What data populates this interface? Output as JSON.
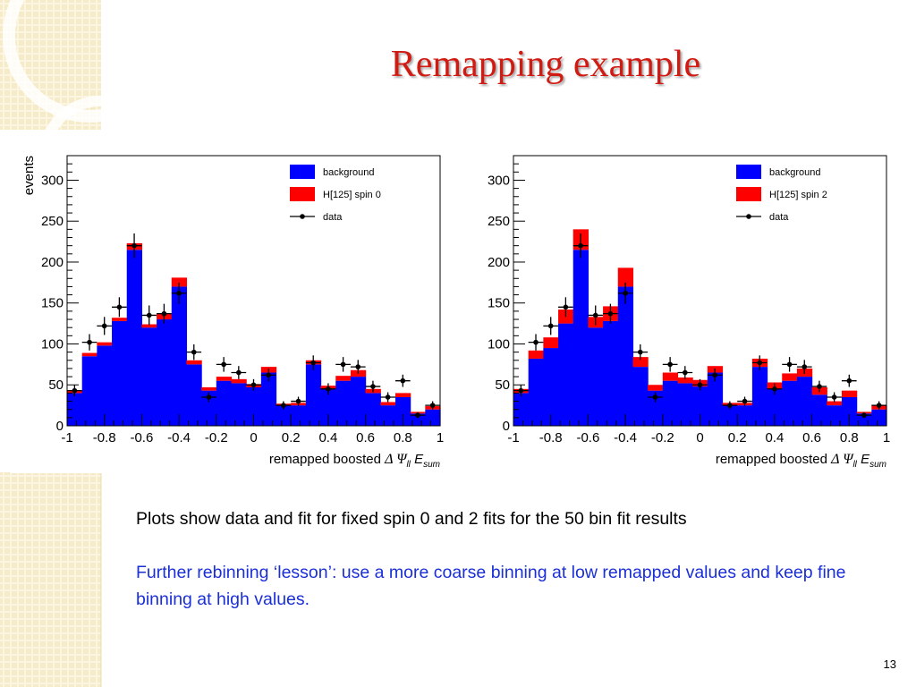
{
  "slide": {
    "title": "Remapping example",
    "caption_1": "Plots show data and fit for fixed spin 0 and 2 fits for the 50 bin fit results",
    "caption_2": "Further rebinning ‘lesson’: use a more coarse binning at low remapped values and keep fine binning at high values.",
    "page_number": "13",
    "colors": {
      "title": "#d01a12",
      "caption_2": "#1a2fd6",
      "background_fill": "#0000ff",
      "signal_fill": "#ff0000",
      "data_marker": "#000000",
      "decoration": "#f4e8c4"
    }
  },
  "chart_data": [
    {
      "type": "bar",
      "stacked": true,
      "xlabel_text": "remapped boosted",
      "xlabel_math": "Δ Ψ",
      "xlabel_sub1": "ll",
      "xlabel_var": "E",
      "xlabel_sub2": "sum",
      "ylabel": "events",
      "xlim": [
        -1,
        1
      ],
      "ylim": [
        0,
        330
      ],
      "xticks": [
        -1,
        -0.8,
        -0.6,
        -0.4,
        -0.2,
        0,
        0.2,
        0.4,
        0.6,
        0.8,
        1
      ],
      "xtick_labels": [
        "-1",
        "-0.8",
        "-0.6",
        "-0.4",
        "-0.2",
        "0",
        "0.2",
        "0.4",
        "0.6",
        "0.8",
        "1"
      ],
      "yticks": [
        0,
        50,
        100,
        150,
        200,
        250,
        300
      ],
      "ytick_labels": [
        "0",
        "50",
        "100",
        "150",
        "200",
        "250",
        "300"
      ],
      "legend_position": "top-right",
      "bin_edges": [
        -1,
        -0.92,
        -0.84,
        -0.76,
        -0.68,
        -0.6,
        -0.52,
        -0.44,
        -0.36,
        -0.28,
        -0.2,
        -0.12,
        -0.04,
        0.04,
        0.12,
        0.2,
        0.28,
        0.36,
        0.44,
        0.52,
        0.6,
        0.68,
        0.76,
        0.84,
        0.92,
        1
      ],
      "series": [
        {
          "name": "background",
          "color": "#0000ff",
          "values": [
            40,
            85,
            98,
            128,
            215,
            120,
            130,
            170,
            75,
            43,
            55,
            52,
            47,
            65,
            25,
            25,
            75,
            45,
            55,
            60,
            40,
            25,
            35,
            15,
            20
          ]
        },
        {
          "name": "H[125] spin 0",
          "color": "#ff0000",
          "values": [
            3,
            4,
            4,
            4,
            8,
            4,
            7,
            11,
            5,
            4,
            5,
            5,
            4,
            7,
            2,
            3,
            5,
            4,
            6,
            8,
            5,
            4,
            5,
            2,
            4
          ]
        },
        {
          "name": "data",
          "color": "#000000",
          "type": "points",
          "values": [
            43,
            102,
            122,
            145,
            220,
            135,
            137,
            162,
            90,
            35,
            75,
            65,
            50,
            62,
            25,
            30,
            77,
            45,
            75,
            72,
            48,
            35,
            55,
            13,
            25
          ],
          "errors": [
            7,
            10,
            11,
            12,
            15,
            12,
            12,
            13,
            9.5,
            6,
            9,
            8,
            7,
            8,
            5,
            5.5,
            9,
            7,
            9,
            8.5,
            7,
            6,
            7.5,
            3.5,
            5
          ]
        }
      ]
    },
    {
      "type": "bar",
      "stacked": true,
      "xlabel_text": "remapped boosted",
      "xlabel_math": "Δ Ψ",
      "xlabel_sub1": "ll",
      "xlabel_var": "E",
      "xlabel_sub2": "sum",
      "ylabel": "",
      "xlim": [
        -1,
        1
      ],
      "ylim": [
        0,
        330
      ],
      "xticks": [
        -1,
        -0.8,
        -0.6,
        -0.4,
        -0.2,
        0,
        0.2,
        0.4,
        0.6,
        0.8,
        1
      ],
      "xtick_labels": [
        "-1",
        "-0.8",
        "-0.6",
        "-0.4",
        "-0.2",
        "0",
        "0.2",
        "0.4",
        "0.6",
        "0.8",
        "1"
      ],
      "yticks": [
        0,
        50,
        100,
        150,
        200,
        250,
        300
      ],
      "ytick_labels": [
        "0",
        "50",
        "100",
        "150",
        "200",
        "250",
        "300"
      ],
      "legend_position": "top-right",
      "bin_edges": [
        -1,
        -0.92,
        -0.84,
        -0.76,
        -0.68,
        -0.6,
        -0.52,
        -0.44,
        -0.36,
        -0.28,
        -0.2,
        -0.12,
        -0.04,
        0.04,
        0.12,
        0.2,
        0.28,
        0.36,
        0.44,
        0.52,
        0.6,
        0.68,
        0.76,
        0.84,
        0.92,
        1
      ],
      "series": [
        {
          "name": "background",
          "color": "#0000ff",
          "values": [
            40,
            82,
            95,
            125,
            215,
            120,
            128,
            170,
            72,
            43,
            55,
            52,
            48,
            65,
            25,
            25,
            72,
            45,
            55,
            60,
            38,
            25,
            35,
            15,
            20
          ]
        },
        {
          "name": "H[125] spin 2",
          "color": "#ff0000",
          "values": [
            5,
            10,
            13,
            17,
            25,
            13,
            18,
            23,
            12,
            7,
            10,
            7,
            8,
            8,
            3,
            3,
            10,
            8,
            9,
            10,
            9,
            5,
            8,
            2,
            5
          ]
        },
        {
          "name": "data",
          "color": "#000000",
          "type": "points",
          "values": [
            43,
            102,
            122,
            145,
            220,
            135,
            137,
            162,
            90,
            35,
            75,
            65,
            50,
            62,
            25,
            30,
            77,
            45,
            75,
            72,
            48,
            35,
            55,
            13,
            25
          ],
          "errors": [
            7,
            10,
            11,
            12,
            15,
            12,
            12,
            13,
            9.5,
            6,
            9,
            8,
            7,
            8,
            5,
            5.5,
            9,
            7,
            9,
            8.5,
            7,
            6,
            7.5,
            3.5,
            5
          ]
        }
      ]
    }
  ]
}
